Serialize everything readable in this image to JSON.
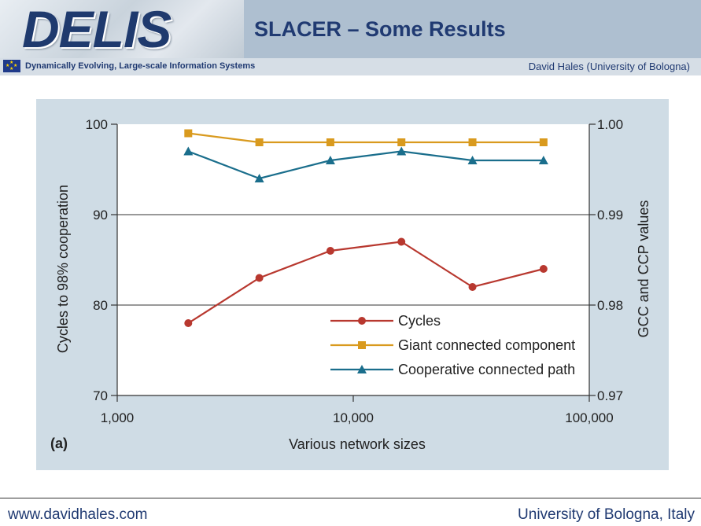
{
  "header": {
    "logo": "DELIS",
    "title": "SLACER – Some Results",
    "subtitle_left": "Dynamically Evolving, Large-scale Information Systems",
    "subtitle_right": "David Hales (University of Bologna)"
  },
  "footer": {
    "left": "www.davidhales.com",
    "right": "University of Bologna, Italy"
  },
  "colors": {
    "cycles": "#b8382f",
    "giant": "#d99a1e",
    "cooperative": "#1a6e8c",
    "accent": "#203a72"
  },
  "chart_data": {
    "type": "line",
    "panel_label": "(a)",
    "xlabel": "Various network sizes",
    "ylabel": "Cycles to 98% cooperation",
    "y2label": "GCC and CCP values",
    "x_scale": "log",
    "xlim": [
      1000,
      100000
    ],
    "ylim": [
      70,
      100
    ],
    "y2lim": [
      0.97,
      1.0
    ],
    "x_ticks": [
      1000,
      10000,
      100000
    ],
    "x_tick_labels": [
      "1,000",
      "10,000",
      "100,000"
    ],
    "y_ticks": [
      70,
      80,
      90,
      100
    ],
    "y_tick_labels": [
      "70",
      "80",
      "90",
      "100"
    ],
    "y2_ticks": [
      0.97,
      0.98,
      0.99,
      1.0
    ],
    "y2_tick_labels": [
      "0.97",
      "0.98",
      "0.99",
      "1.00"
    ],
    "grid": "horizontal line at 90 only",
    "legend_position": "bottom-right",
    "x": [
      2000,
      4000,
      8000,
      16000,
      32000,
      64000
    ],
    "series": [
      {
        "name": "Cycles",
        "axis": "left",
        "marker": "circle",
        "values": [
          78,
          83,
          86,
          87,
          82,
          84
        ]
      },
      {
        "name": "Giant connected component",
        "axis": "right",
        "marker": "square",
        "values": [
          0.999,
          0.998,
          0.998,
          0.998,
          0.998,
          0.998
        ]
      },
      {
        "name": "Cooperative connected path",
        "axis": "right",
        "marker": "triangle",
        "values": [
          0.997,
          0.994,
          0.996,
          0.997,
          0.996,
          0.996
        ]
      }
    ]
  }
}
